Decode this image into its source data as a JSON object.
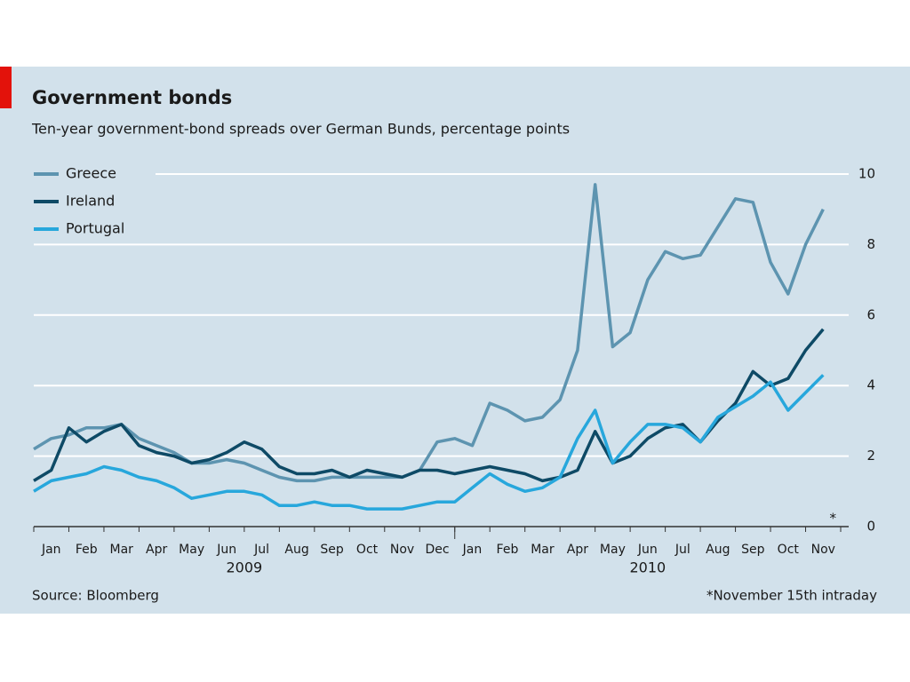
{
  "chart_data": {
    "type": "line",
    "title": "Government bonds",
    "subtitle": "Ten-year government-bond spreads over German Bunds, percentage points",
    "source": "Source: Bloomberg",
    "note": "*November 15th intraday",
    "annotation": "*",
    "categories": [
      "Jan",
      null,
      "Feb",
      null,
      "Mar",
      null,
      "Apr",
      null,
      "May",
      null,
      "Jun",
      null,
      "Jul",
      null,
      "Aug",
      null,
      "Sep",
      null,
      "Oct",
      null,
      "Nov",
      null,
      "Dec",
      null,
      "Jan",
      null,
      "Feb",
      null,
      "Mar",
      null,
      "Apr",
      null,
      "May",
      null,
      "Jun",
      null,
      "Jul",
      null,
      "Aug",
      null,
      "Sep",
      null,
      "Oct",
      null,
      "Nov",
      null
    ],
    "year_labels": [
      "2009",
      "2010"
    ],
    "series": [
      {
        "name": "Greece",
        "color": "#5d94b0",
        "values": [
          2.2,
          2.5,
          2.6,
          2.8,
          2.8,
          2.9,
          2.5,
          2.3,
          2.1,
          1.8,
          1.8,
          1.9,
          1.8,
          1.6,
          1.4,
          1.3,
          1.3,
          1.4,
          1.4,
          1.4,
          1.4,
          1.4,
          1.6,
          2.4,
          2.5,
          2.3,
          3.5,
          3.3,
          3.0,
          3.1,
          3.6,
          5.0,
          9.7,
          5.1,
          5.5,
          7.0,
          7.8,
          7.6,
          7.7,
          8.5,
          9.3,
          9.2,
          7.5,
          6.6,
          8.0,
          9.0
        ]
      },
      {
        "name": "Ireland",
        "color": "#0e4a66",
        "values": [
          1.3,
          1.6,
          2.8,
          2.4,
          2.7,
          2.9,
          2.3,
          2.1,
          2.0,
          1.8,
          1.9,
          2.1,
          2.4,
          2.2,
          1.7,
          1.5,
          1.5,
          1.6,
          1.4,
          1.6,
          1.5,
          1.4,
          1.6,
          1.6,
          1.5,
          1.6,
          1.7,
          1.6,
          1.5,
          1.3,
          1.4,
          1.6,
          2.7,
          1.8,
          2.0,
          2.5,
          2.8,
          2.9,
          2.4,
          3.0,
          3.5,
          4.4,
          4.0,
          4.2,
          5.0,
          5.6
        ]
      },
      {
        "name": "Portugal",
        "color": "#27a7dc",
        "values": [
          1.0,
          1.3,
          1.4,
          1.5,
          1.7,
          1.6,
          1.4,
          1.3,
          1.1,
          0.8,
          0.9,
          1.0,
          1.0,
          0.9,
          0.6,
          0.6,
          0.7,
          0.6,
          0.6,
          0.5,
          0.5,
          0.5,
          0.6,
          0.7,
          0.7,
          1.1,
          1.5,
          1.2,
          1.0,
          1.1,
          1.4,
          2.5,
          3.3,
          1.8,
          2.4,
          2.9,
          2.9,
          2.8,
          2.4,
          3.1,
          3.4,
          3.7,
          4.1,
          3.3,
          3.8,
          4.3
        ]
      }
    ],
    "ylim": [
      0,
      10
    ],
    "yticks": [
      0,
      2,
      4,
      6,
      8,
      10
    ],
    "grid": true,
    "legend": "top-left"
  }
}
